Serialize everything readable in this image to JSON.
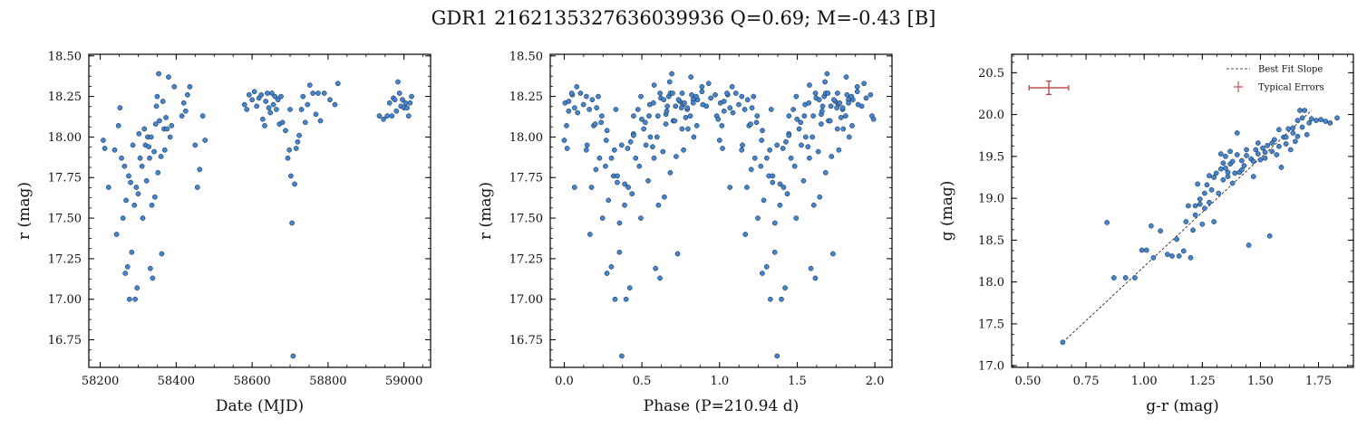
{
  "figure": {
    "title": "GDR1 2162135327636039936  Q=0.69; M=-0.43 [B]"
  },
  "colors": {
    "point_fill": "#3f86d6",
    "point_edge": "#1a1a1a",
    "fit_line": "#111111",
    "error_bar": "#c0504d"
  },
  "chart_data": [
    {
      "id": "timeseries",
      "type": "scatter",
      "xlabel": "Date (MJD)",
      "ylabel": "r (mag)",
      "xlim": [
        58170,
        59070
      ],
      "ylim": [
        18.51,
        16.58
      ],
      "y_inverted": true,
      "xticks": [
        58200,
        58400,
        58600,
        58800,
        59000
      ],
      "xtick_labels": [
        "58200",
        "58400",
        "58600",
        "58800",
        "59000"
      ],
      "yticks": [
        16.75,
        17.0,
        17.25,
        17.5,
        17.75,
        18.0,
        18.25,
        18.5
      ],
      "ytick_labels": [
        "16.75",
        "17.00",
        "17.25",
        "17.50",
        "17.75",
        "18.00",
        "18.25",
        "18.50"
      ],
      "points": [
        [
          58208,
          17.98
        ],
        [
          58212,
          17.93
        ],
        [
          58222,
          17.69
        ],
        [
          58238,
          17.92
        ],
        [
          58243,
          17.4
        ],
        [
          58248,
          18.07
        ],
        [
          58252,
          18.18
        ],
        [
          58256,
          17.87
        ],
        [
          58260,
          17.5
        ],
        [
          58264,
          17.82
        ],
        [
          58266,
          17.16
        ],
        [
          58268,
          17.61
        ],
        [
          58272,
          17.2
        ],
        [
          58275,
          17.76
        ],
        [
          58277,
          17.0
        ],
        [
          58280,
          17.72
        ],
        [
          58283,
          17.29
        ],
        [
          58286,
          17.95
        ],
        [
          58290,
          17.58
        ],
        [
          58292,
          17.0
        ],
        [
          58295,
          17.69
        ],
        [
          58297,
          17.07
        ],
        [
          58300,
          17.65
        ],
        [
          58302,
          18.02
        ],
        [
          58305,
          17.87
        ],
        [
          58310,
          17.82
        ],
        [
          58312,
          17.5
        ],
        [
          58316,
          18.05
        ],
        [
          58319,
          17.95
        ],
        [
          58322,
          17.73
        ],
        [
          58325,
          18.0
        ],
        [
          58328,
          17.94
        ],
        [
          58330,
          17.87
        ],
        [
          58332,
          17.19
        ],
        [
          58334,
          18.0
        ],
        [
          58336,
          17.58
        ],
        [
          58338,
          17.13
        ],
        [
          58342,
          17.91
        ],
        [
          58344,
          17.63
        ],
        [
          58346,
          18.08
        ],
        [
          58348,
          18.19
        ],
        [
          58350,
          18.25
        ],
        [
          58352,
          17.78
        ],
        [
          58354,
          18.39
        ],
        [
          58356,
          18.1
        ],
        [
          58360,
          17.88
        ],
        [
          58362,
          17.28
        ],
        [
          58365,
          18.22
        ],
        [
          58368,
          18.05
        ],
        [
          58370,
          17.92
        ],
        [
          58373,
          18.12
        ],
        [
          58376,
          18.05
        ],
        [
          58380,
          18.37
        ],
        [
          58384,
          18.0
        ],
        [
          58388,
          18.07
        ],
        [
          58395,
          18.31
        ],
        [
          58415,
          18.13
        ],
        [
          58420,
          18.21
        ],
        [
          58425,
          18.16
        ],
        [
          58430,
          18.26
        ],
        [
          58436,
          18.31
        ],
        [
          58450,
          17.95
        ],
        [
          58456,
          17.69
        ],
        [
          58462,
          17.8
        ],
        [
          58470,
          18.13
        ],
        [
          58476,
          17.98
        ],
        [
          58580,
          18.2
        ],
        [
          58586,
          18.17
        ],
        [
          58592,
          18.26
        ],
        [
          58600,
          18.23
        ],
        [
          58606,
          18.28
        ],
        [
          58612,
          18.19
        ],
        [
          58618,
          18.24
        ],
        [
          58624,
          18.26
        ],
        [
          58628,
          18.11
        ],
        [
          58633,
          18.07
        ],
        [
          58636,
          18.22
        ],
        [
          58640,
          18.27
        ],
        [
          58644,
          18.18
        ],
        [
          58648,
          18.15
        ],
        [
          58652,
          18.27
        ],
        [
          58656,
          18.2
        ],
        [
          58660,
          18.25
        ],
        [
          58664,
          18.17
        ],
        [
          58668,
          18.23
        ],
        [
          58672,
          18.08
        ],
        [
          58676,
          18.25
        ],
        [
          58680,
          18.09
        ],
        [
          58688,
          18.04
        ],
        [
          58694,
          17.87
        ],
        [
          58698,
          17.92
        ],
        [
          58700,
          18.17
        ],
        [
          58702,
          17.76
        ],
        [
          58705,
          17.47
        ],
        [
          58708,
          16.65
        ],
        [
          58712,
          17.71
        ],
        [
          58716,
          17.93
        ],
        [
          58720,
          17.97
        ],
        [
          58724,
          18.01
        ],
        [
          58730,
          18.17
        ],
        [
          58734,
          18.25
        ],
        [
          58740,
          18.09
        ],
        [
          58746,
          18.2
        ],
        [
          58752,
          18.32
        ],
        [
          58760,
          18.27
        ],
        [
          58768,
          18.14
        ],
        [
          58774,
          18.27
        ],
        [
          58780,
          18.1
        ],
        [
          58790,
          18.27
        ],
        [
          58805,
          18.23
        ],
        [
          58818,
          18.2
        ],
        [
          58826,
          18.33
        ],
        [
          58935,
          18.13
        ],
        [
          58946,
          18.11
        ],
        [
          58956,
          18.13
        ],
        [
          58962,
          18.21
        ],
        [
          58968,
          18.13
        ],
        [
          58972,
          18.24
        ],
        [
          58976,
          18.23
        ],
        [
          58980,
          18.16
        ],
        [
          58984,
          18.34
        ],
        [
          58988,
          18.27
        ],
        [
          58992,
          18.19
        ],
        [
          58996,
          18.23
        ],
        [
          59000,
          18.18
        ],
        [
          59004,
          18.21
        ],
        [
          59008,
          18.18
        ],
        [
          59012,
          18.13
        ],
        [
          59016,
          18.21
        ],
        [
          59020,
          18.25
        ]
      ]
    },
    {
      "id": "phase",
      "type": "scatter",
      "xlabel": "Phase (P=210.94 d)",
      "ylabel": "r (mag)",
      "period": 210.94,
      "phase_source": "timeseries",
      "xlim": [
        -0.09,
        2.11
      ],
      "ylim": [
        18.51,
        16.58
      ],
      "y_inverted": true,
      "xticks": [
        0.0,
        0.5,
        1.0,
        1.5,
        2.0
      ],
      "xtick_labels": [
        "0.0",
        "0.5",
        "1.0",
        "1.5",
        "2.0"
      ],
      "yticks": [
        16.75,
        17.0,
        17.25,
        17.5,
        17.75,
        18.0,
        18.25,
        18.5
      ],
      "ytick_labels": [
        "16.75",
        "17.00",
        "17.25",
        "17.50",
        "17.75",
        "18.00",
        "18.25",
        "18.50"
      ]
    },
    {
      "id": "color-magnitude",
      "type": "scatter",
      "xlabel": "g-r (mag)",
      "ylabel": "g (mag)",
      "xlim": [
        0.43,
        1.9
      ],
      "ylim": [
        20.72,
        16.98
      ],
      "y_inverted": true,
      "xticks": [
        0.5,
        0.75,
        1.0,
        1.25,
        1.5,
        1.75
      ],
      "xtick_labels": [
        "0.50",
        "0.75",
        "1.00",
        "1.25",
        "1.50",
        "1.75"
      ],
      "yticks": [
        17.0,
        17.5,
        18.0,
        18.5,
        19.0,
        19.5,
        20.0,
        20.5
      ],
      "ytick_labels": [
        "17.0",
        "17.5",
        "18.0",
        "18.5",
        "19.0",
        "19.5",
        "20.0",
        "20.5"
      ],
      "fit_line": [
        [
          0.65,
          17.28
        ],
        [
          1.72,
          20.05
        ]
      ],
      "typical_error": {
        "x": 0.59,
        "y": 20.32,
        "xerr": 0.085,
        "yerr": 0.08
      },
      "legend": {
        "position": "upper-right",
        "entries": [
          "Best Fit Slope",
          "Typical Errors"
        ]
      },
      "points": [
        [
          0.65,
          17.28
        ],
        [
          0.84,
          18.71
        ],
        [
          0.87,
          18.05
        ],
        [
          0.92,
          18.05
        ],
        [
          0.96,
          18.05
        ],
        [
          0.99,
          18.38
        ],
        [
          1.01,
          18.38
        ],
        [
          1.03,
          18.67
        ],
        [
          1.04,
          18.29
        ],
        [
          1.07,
          18.61
        ],
        [
          1.1,
          18.33
        ],
        [
          1.12,
          18.31
        ],
        [
          1.14,
          18.51
        ],
        [
          1.15,
          18.31
        ],
        [
          1.17,
          18.37
        ],
        [
          1.18,
          18.72
        ],
        [
          1.19,
          18.91
        ],
        [
          1.2,
          18.29
        ],
        [
          1.21,
          18.62
        ],
        [
          1.22,
          18.8
        ],
        [
          1.23,
          19.17
        ],
        [
          1.24,
          18.93
        ],
        [
          1.25,
          18.69
        ],
        [
          1.26,
          18.88
        ],
        [
          1.27,
          19.16
        ],
        [
          1.28,
          18.95
        ],
        [
          1.29,
          19.1
        ],
        [
          1.3,
          18.72
        ],
        [
          1.31,
          19.3
        ],
        [
          1.32,
          19.06
        ],
        [
          1.33,
          19.53
        ],
        [
          1.34,
          19.22
        ],
        [
          1.35,
          19.36
        ],
        [
          1.36,
          19.26
        ],
        [
          1.37,
          19.41
        ],
        [
          1.38,
          19.18
        ],
        [
          1.39,
          19.3
        ],
        [
          1.4,
          19.78
        ],
        [
          1.41,
          19.31
        ],
        [
          1.42,
          19.45
        ],
        [
          1.43,
          19.39
        ],
        [
          1.44,
          19.51
        ],
        [
          1.45,
          18.44
        ],
        [
          1.46,
          19.47
        ],
        [
          1.47,
          19.26
        ],
        [
          1.48,
          19.58
        ],
        [
          1.49,
          19.53
        ],
        [
          1.5,
          19.46
        ],
        [
          1.51,
          19.6
        ],
        [
          1.52,
          19.48
        ],
        [
          1.53,
          19.63
        ],
        [
          1.54,
          18.55
        ],
        [
          1.55,
          19.56
        ],
        [
          1.56,
          19.7
        ],
        [
          1.57,
          19.52
        ],
        [
          1.58,
          19.62
        ],
        [
          1.59,
          19.37
        ],
        [
          1.6,
          19.73
        ],
        [
          1.61,
          19.65
        ],
        [
          1.62,
          19.83
        ],
        [
          1.63,
          19.58
        ],
        [
          1.64,
          19.78
        ],
        [
          1.65,
          19.68
        ],
        [
          1.66,
          19.93
        ],
        [
          1.67,
          20.05
        ],
        [
          1.68,
          19.85
        ],
        [
          1.69,
          20.05
        ],
        [
          1.7,
          19.76
        ],
        [
          1.71,
          19.9
        ],
        [
          1.72,
          19.95
        ],
        [
          1.74,
          19.93
        ],
        [
          1.76,
          19.94
        ],
        [
          1.78,
          19.92
        ],
        [
          1.8,
          19.9
        ],
        [
          1.83,
          19.96
        ],
        [
          1.36,
          19.31
        ],
        [
          1.38,
          19.44
        ],
        [
          1.42,
          19.34
        ],
        [
          1.44,
          19.58
        ],
        [
          1.47,
          19.44
        ],
        [
          1.49,
          19.66
        ],
        [
          1.52,
          19.55
        ],
        [
          1.55,
          19.66
        ],
        [
          1.58,
          19.82
        ],
        [
          1.61,
          19.73
        ],
        [
          1.64,
          19.84
        ],
        [
          1.66,
          19.74
        ],
        [
          1.68,
          19.96
        ],
        [
          1.3,
          19.25
        ],
        [
          1.33,
          19.35
        ],
        [
          1.35,
          19.5
        ],
        [
          1.37,
          19.56
        ],
        [
          1.28,
          19.27
        ],
        [
          1.26,
          19.06
        ],
        [
          1.24,
          18.99
        ],
        [
          1.22,
          18.91
        ],
        [
          1.34,
          19.42
        ],
        [
          1.4,
          19.52
        ]
      ]
    }
  ]
}
